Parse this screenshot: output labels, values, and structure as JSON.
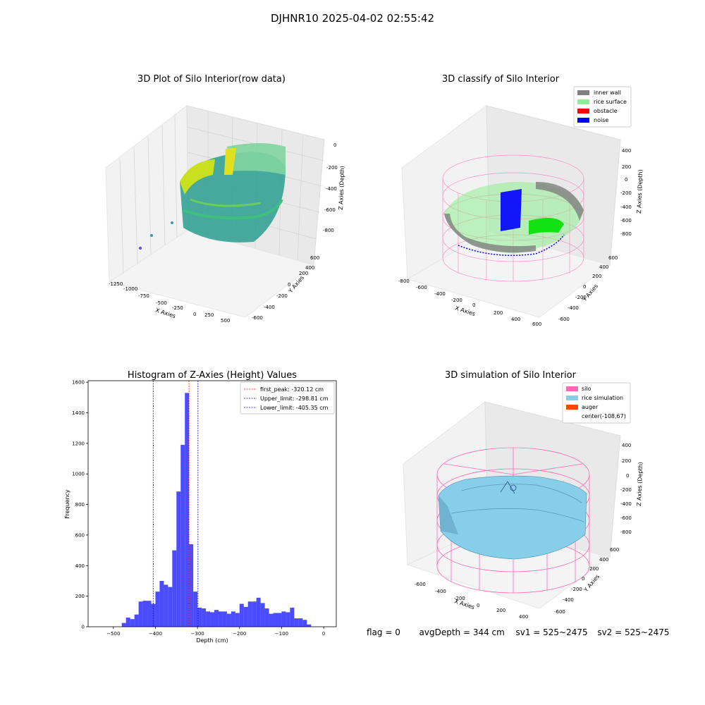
{
  "suptitle": "DJHNR10 2025-04-02 02:55:42",
  "chart_data": [
    {
      "type": "scatter",
      "projection": "3d",
      "title": "3D Plot of Silo Interior(row data)",
      "xlabel": "X Axies",
      "ylabel": "Y Axies",
      "zlabel": "Z Axies (Depth)",
      "xticks": [
        "-1250",
        "-1000",
        "-750",
        "-500",
        "-250",
        "0",
        "250",
        "500"
      ],
      "yticks": [
        "-600",
        "-400",
        "-200",
        "0",
        "200",
        "400",
        "600"
      ],
      "zticks": [
        "0",
        "-200",
        "-400",
        "-600",
        "-800"
      ],
      "xlim": [
        -1350,
        600
      ],
      "ylim": [
        -650,
        650
      ],
      "zlim": [
        -900,
        50
      ],
      "colormap": "viridis",
      "outlier_points": [
        [
          -1300,
          -150,
          -850
        ],
        [
          -1150,
          -250,
          -700
        ],
        [
          -950,
          -350,
          -550
        ]
      ]
    },
    {
      "type": "scatter",
      "projection": "3d",
      "title": "3D classify of Silo Interior",
      "xlabel": "X Axies",
      "ylabel": "Y Axies",
      "zlabel": "Z Axies (Depth)",
      "xticks": [
        "-800",
        "-600",
        "-400",
        "-200",
        "0",
        "200",
        "400",
        "600"
      ],
      "yticks": [
        "-600",
        "-400",
        "-200",
        "0",
        "200",
        "400",
        "600"
      ],
      "zticks": [
        "400",
        "200",
        "0",
        "-200",
        "-400",
        "-600",
        "-800"
      ],
      "legend_position": "upper-right",
      "legend": [
        {
          "label": "inner wall",
          "color": "#808080"
        },
        {
          "label": "rice surface",
          "color": "#90ee90"
        },
        {
          "label": "obstacle",
          "color": "#ff0000"
        },
        {
          "label": "noise",
          "color": "#0000ff"
        }
      ],
      "wireframe_color": "#ff69b4"
    },
    {
      "type": "bar",
      "title": "Histogram of Z-Axies (Height) Values",
      "xlabel": "Depth (cm)",
      "ylabel": "Frequency",
      "xlim": [
        -560,
        30
      ],
      "ylim": [
        0,
        1610
      ],
      "xticks": [
        -500,
        -400,
        -300,
        -200,
        -100,
        0
      ],
      "yticks": [
        0,
        200,
        400,
        600,
        800,
        1000,
        1200,
        1400,
        1600
      ],
      "bin_width": 10,
      "bar_color": "#0000ff",
      "bins": [
        {
          "x": -480,
          "v": 25
        },
        {
          "x": -470,
          "v": 60
        },
        {
          "x": -460,
          "v": 50
        },
        {
          "x": -450,
          "v": 80
        },
        {
          "x": -440,
          "v": 165
        },
        {
          "x": -430,
          "v": 170
        },
        {
          "x": -420,
          "v": 170
        },
        {
          "x": -410,
          "v": 150
        },
        {
          "x": -400,
          "v": 230
        },
        {
          "x": -390,
          "v": 300
        },
        {
          "x": -380,
          "v": 275
        },
        {
          "x": -370,
          "v": 260
        },
        {
          "x": -360,
          "v": 500
        },
        {
          "x": -350,
          "v": 885
        },
        {
          "x": -340,
          "v": 1190
        },
        {
          "x": -330,
          "v": 1530
        },
        {
          "x": -320,
          "v": 540
        },
        {
          "x": -310,
          "v": 230
        },
        {
          "x": -300,
          "v": 125
        },
        {
          "x": -290,
          "v": 120
        },
        {
          "x": -280,
          "v": 100
        },
        {
          "x": -270,
          "v": 95
        },
        {
          "x": -260,
          "v": 110
        },
        {
          "x": -250,
          "v": 100
        },
        {
          "x": -240,
          "v": 100
        },
        {
          "x": -230,
          "v": 85
        },
        {
          "x": -220,
          "v": 100
        },
        {
          "x": -210,
          "v": 90
        },
        {
          "x": -200,
          "v": 150
        },
        {
          "x": -190,
          "v": 130
        },
        {
          "x": -180,
          "v": 165
        },
        {
          "x": -170,
          "v": 165
        },
        {
          "x": -160,
          "v": 190
        },
        {
          "x": -150,
          "v": 155
        },
        {
          "x": -140,
          "v": 120
        },
        {
          "x": -130,
          "v": 85
        },
        {
          "x": -120,
          "v": 90
        },
        {
          "x": -110,
          "v": 90
        },
        {
          "x": -100,
          "v": 100
        },
        {
          "x": -90,
          "v": 95
        },
        {
          "x": -80,
          "v": 125
        },
        {
          "x": -70,
          "v": 55
        },
        {
          "x": -60,
          "v": 55
        },
        {
          "x": -50,
          "v": 45
        },
        {
          "x": -40,
          "v": 15
        }
      ],
      "lines": [
        {
          "label": "first_peak: -320.12 cm",
          "x": -320.12,
          "color": "#ff0000"
        },
        {
          "label": "Upper_limit: -298.81 cm",
          "x": -298.81,
          "color": "#0000ff"
        },
        {
          "label": "Lower_limit: -405.35 cm",
          "x": -405.35,
          "color": "#0000ff"
        }
      ],
      "legend_position": "upper-right"
    },
    {
      "type": "surface",
      "projection": "3d",
      "title": "3D simulation of Silo Interior",
      "xlabel": "X Axies",
      "ylabel": "Y Axies",
      "zlabel": "Z Axies (Depth)",
      "xticks": [
        "-600",
        "-400",
        "-200",
        "0",
        "200",
        "400"
      ],
      "yticks": [
        "-600",
        "-400",
        "-200",
        "0",
        "200",
        "400",
        "600"
      ],
      "zticks": [
        "400",
        "200",
        "0",
        "-200",
        "-400",
        "-600",
        "-800"
      ],
      "legend_position": "upper-right",
      "legend": [
        {
          "label": "silo",
          "color": "#ff69b4"
        },
        {
          "label": "rice simulation",
          "color": "#87ceeb"
        },
        {
          "label": "auger",
          "color": "#ff4500"
        },
        {
          "label": "center(-108,67)",
          "color": ""
        }
      ]
    }
  ],
  "footer": {
    "flag": "flag = 0",
    "avg": "avgDepth = 344 cm",
    "sv1": "sv1 = 525~2475",
    "sv2": "sv2 = 525~2475"
  }
}
